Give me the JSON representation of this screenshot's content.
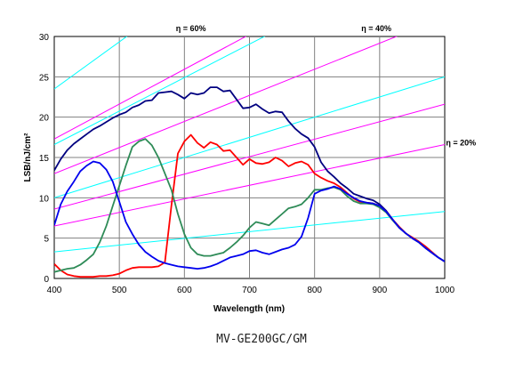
{
  "caption": "MV-GE200GC/GM",
  "chart_data": {
    "type": "line",
    "xlabel": "Wavelength (nm)",
    "ylabel": "LSB/nJ/cm²",
    "xlim": [
      400,
      1000
    ],
    "ylim": [
      0,
      30
    ],
    "x_ticks": [
      400,
      500,
      600,
      700,
      800,
      900,
      1000
    ],
    "y_ticks": [
      0,
      5,
      10,
      15,
      20,
      25,
      30
    ],
    "grid": true,
    "efficiency_labels": [
      {
        "text": "η = 60%",
        "x": 610,
        "y": 31
      },
      {
        "text": "η = 40%",
        "x": 895,
        "y": 31
      },
      {
        "text": "η = 20%",
        "x": 1025,
        "y": 16.8
      }
    ],
    "reference_lines": [
      {
        "color": "#ff00ff",
        "points": [
          [
            400,
            17.3
          ],
          [
            1000,
            43.2
          ]
        ]
      },
      {
        "color": "#ff00ff",
        "points": [
          [
            400,
            13.0
          ],
          [
            1000,
            32.4
          ]
        ]
      },
      {
        "color": "#ff00ff",
        "points": [
          [
            400,
            8.6
          ],
          [
            1000,
            21.6
          ]
        ]
      },
      {
        "color": "#ff00ff",
        "points": [
          [
            400,
            6.5
          ],
          [
            1000,
            16.6
          ]
        ]
      },
      {
        "color": "#00ffff",
        "points": [
          [
            400,
            23.5
          ],
          [
            1000,
            58.5
          ]
        ]
      },
      {
        "color": "#00ffff",
        "points": [
          [
            400,
            16.6
          ],
          [
            1000,
            41.5
          ]
        ]
      },
      {
        "color": "#00ffff",
        "points": [
          [
            400,
            10.0
          ],
          [
            1000,
            25.0
          ]
        ]
      },
      {
        "color": "#00ffff",
        "points": [
          [
            400,
            3.3
          ],
          [
            1000,
            8.3
          ]
        ]
      }
    ],
    "series": [
      {
        "color": "#000080",
        "x": [
          400,
          410,
          420,
          430,
          440,
          450,
          460,
          470,
          480,
          490,
          500,
          510,
          520,
          530,
          540,
          550,
          560,
          570,
          580,
          590,
          600,
          610,
          620,
          630,
          640,
          650,
          660,
          670,
          680,
          690,
          700,
          710,
          720,
          730,
          740,
          750,
          760,
          770,
          780,
          790,
          800,
          810,
          820,
          830,
          840,
          850,
          860,
          870,
          880,
          890,
          900,
          910,
          920,
          930,
          940,
          950,
          960,
          970,
          980,
          990,
          1000
        ],
        "values": [
          13.4,
          14.8,
          15.9,
          16.7,
          17.3,
          17.9,
          18.5,
          18.9,
          19.4,
          19.9,
          20.3,
          20.6,
          21.2,
          21.5,
          22.0,
          22.1,
          23.0,
          23.1,
          23.2,
          22.8,
          22.3,
          23.0,
          22.8,
          23.0,
          23.7,
          23.7,
          23.2,
          23.3,
          22.2,
          21.1,
          21.2,
          21.6,
          21.0,
          20.5,
          20.7,
          20.6,
          19.5,
          18.6,
          17.9,
          17.4,
          16.3,
          14.4,
          13.3,
          12.6,
          11.8,
          11.2,
          10.5,
          10.2,
          9.9,
          9.7,
          9.2,
          8.4,
          7.3,
          6.4,
          5.6,
          5.0,
          4.5,
          3.8,
          3.2,
          2.6,
          2.1
        ]
      },
      {
        "color": "#ff0000",
        "x": [
          400,
          410,
          420,
          430,
          440,
          450,
          460,
          470,
          480,
          490,
          500,
          510,
          520,
          530,
          540,
          550,
          560,
          570,
          580,
          590,
          600,
          610,
          620,
          630,
          640,
          650,
          660,
          670,
          680,
          690,
          700,
          710,
          720,
          730,
          740,
          750,
          760,
          770,
          780,
          790,
          800,
          810,
          820,
          830,
          840,
          850,
          860,
          870,
          880,
          890,
          900,
          910,
          920,
          930,
          940,
          950,
          960,
          970,
          980,
          990,
          1000
        ],
        "values": [
          1.8,
          1.0,
          0.5,
          0.3,
          0.2,
          0.2,
          0.2,
          0.3,
          0.3,
          0.4,
          0.6,
          1.0,
          1.3,
          1.4,
          1.4,
          1.4,
          1.5,
          2.0,
          9.0,
          15.5,
          17.0,
          17.8,
          16.8,
          16.2,
          16.9,
          16.6,
          15.8,
          15.9,
          15.0,
          14.1,
          14.8,
          14.3,
          14.2,
          14.4,
          15.0,
          14.6,
          13.9,
          14.3,
          14.5,
          14.1,
          13.0,
          12.5,
          12.1,
          11.8,
          11.3,
          10.6,
          9.9,
          9.5,
          9.4,
          9.3,
          9.0,
          8.3,
          7.3,
          6.4,
          5.6,
          5.1,
          4.6,
          4.0,
          3.3,
          2.6,
          2.1
        ]
      },
      {
        "color": "#2e8b57",
        "x": [
          400,
          410,
          420,
          430,
          440,
          450,
          460,
          470,
          480,
          490,
          500,
          510,
          520,
          530,
          540,
          550,
          560,
          570,
          580,
          590,
          600,
          610,
          620,
          630,
          640,
          650,
          660,
          670,
          680,
          690,
          700,
          710,
          720,
          730,
          740,
          750,
          760,
          770,
          780,
          790,
          800,
          810,
          820,
          830,
          840,
          850,
          860,
          870,
          880,
          890,
          900,
          910,
          920,
          930,
          940,
          950,
          960,
          970,
          980,
          990,
          1000
        ],
        "values": [
          0.8,
          1.0,
          1.2,
          1.3,
          1.7,
          2.3,
          3.0,
          4.5,
          6.5,
          9.0,
          11.5,
          14.0,
          16.3,
          17.0,
          17.3,
          16.5,
          15.0,
          13.0,
          11.0,
          8.0,
          5.5,
          3.8,
          3.0,
          2.8,
          2.8,
          3.0,
          3.2,
          3.8,
          4.5,
          5.3,
          6.3,
          7.0,
          6.8,
          6.6,
          7.3,
          8.0,
          8.7,
          8.9,
          9.2,
          10.0,
          11.0,
          11.0,
          11.2,
          11.3,
          11.0,
          10.2,
          9.6,
          9.3,
          9.3,
          9.2,
          8.8,
          8.2,
          7.2,
          6.3,
          5.6,
          5.0,
          4.5,
          3.8,
          3.2,
          2.6,
          2.1
        ]
      },
      {
        "color": "#0000ee",
        "x": [
          400,
          410,
          420,
          430,
          440,
          450,
          460,
          470,
          480,
          490,
          500,
          510,
          520,
          530,
          540,
          550,
          560,
          570,
          580,
          590,
          600,
          610,
          620,
          630,
          640,
          650,
          660,
          670,
          680,
          690,
          700,
          710,
          720,
          730,
          740,
          750,
          760,
          770,
          780,
          790,
          800,
          810,
          820,
          830,
          840,
          850,
          860,
          870,
          880,
          890,
          900,
          910,
          920,
          930,
          940,
          950,
          960,
          970,
          980,
          990,
          1000
        ],
        "values": [
          6.6,
          9.2,
          10.8,
          12.0,
          13.3,
          14.0,
          14.5,
          14.3,
          13.5,
          12.0,
          9.5,
          7.0,
          5.5,
          4.2,
          3.3,
          2.7,
          2.2,
          1.9,
          1.7,
          1.5,
          1.4,
          1.3,
          1.2,
          1.3,
          1.5,
          1.8,
          2.2,
          2.6,
          2.8,
          3.0,
          3.4,
          3.5,
          3.2,
          3.0,
          3.3,
          3.6,
          3.8,
          4.2,
          5.2,
          7.5,
          10.5,
          10.9,
          11.1,
          11.4,
          11.1,
          10.5,
          10.0,
          9.6,
          9.4,
          9.3,
          9.0,
          8.3,
          7.3,
          6.3,
          5.6,
          5.0,
          4.5,
          3.8,
          3.2,
          2.6,
          2.1
        ]
      }
    ]
  }
}
